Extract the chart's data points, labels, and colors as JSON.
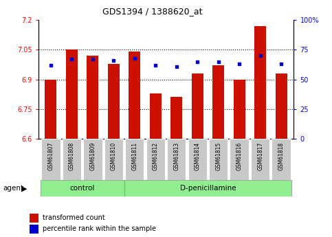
{
  "title": "GDS1394 / 1388620_at",
  "samples": [
    "GSM61807",
    "GSM61808",
    "GSM61809",
    "GSM61810",
    "GSM61811",
    "GSM61812",
    "GSM61813",
    "GSM61814",
    "GSM61815",
    "GSM61816",
    "GSM61817",
    "GSM61818"
  ],
  "bar_values": [
    6.9,
    7.05,
    7.02,
    6.98,
    7.04,
    6.83,
    6.81,
    6.93,
    6.97,
    6.9,
    7.17,
    6.93
  ],
  "dot_values": [
    62,
    67,
    67,
    66,
    68,
    62,
    61,
    65,
    65,
    63,
    70,
    63
  ],
  "bar_color": "#cc1100",
  "dot_color": "#0000cc",
  "ylim_left": [
    6.6,
    7.2
  ],
  "ylim_right": [
    0,
    100
  ],
  "yticks_left": [
    6.6,
    6.75,
    6.9,
    7.05,
    7.2
  ],
  "ytick_labels_left": [
    "6.6",
    "6.75",
    "6.9",
    "7.05",
    "7.2"
  ],
  "yticks_right": [
    0,
    25,
    50,
    75,
    100
  ],
  "ytick_labels_right": [
    "0",
    "25",
    "50",
    "75",
    "100%"
  ],
  "hlines": [
    6.75,
    6.9,
    7.05
  ],
  "control_label": "control",
  "treatment_label": "D-penicillamine",
  "agent_label": "agent",
  "legend_bar_label": "transformed count",
  "legend_dot_label": "percentile rank within the sample",
  "bar_bottom": 6.6,
  "background_color": "#ffffff",
  "plot_bg": "#ffffff",
  "agent_box_color": "#90ee90",
  "tick_area_color": "#c8c8c8",
  "n_control": 4,
  "n_total": 12
}
